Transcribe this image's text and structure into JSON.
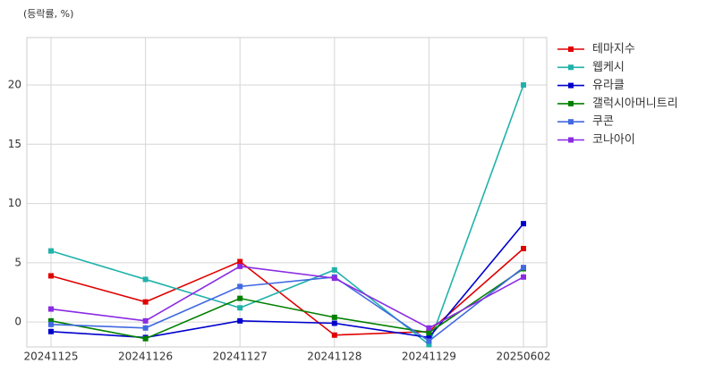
{
  "chart_data": {
    "type": "line",
    "title": "(등락률, %)",
    "categories": [
      "20241125",
      "20241126",
      "20241127",
      "20241128",
      "20241129",
      "20250602"
    ],
    "series": [
      {
        "name": "테마지수",
        "color": "#e00000",
        "values": [
          3.9,
          1.7,
          5.1,
          -1.1,
          -0.8,
          6.2
        ]
      },
      {
        "name": "웹케시",
        "color": "#20b2aa",
        "values": [
          6.0,
          3.6,
          1.2,
          4.4,
          -1.9,
          20.0
        ]
      },
      {
        "name": "유라클",
        "color": "#0000cd",
        "values": [
          -0.8,
          -1.3,
          0.1,
          -0.1,
          -1.3,
          8.3
        ]
      },
      {
        "name": "갤럭시아머니트리",
        "color": "#008000",
        "values": [
          0.1,
          -1.4,
          2.0,
          0.4,
          -0.9,
          4.5
        ]
      },
      {
        "name": "쿠콘",
        "color": "#4169e1",
        "values": [
          -0.2,
          -0.5,
          3.0,
          3.8,
          -1.6,
          4.6
        ]
      },
      {
        "name": "코나아이",
        "color": "#8a2be2",
        "values": [
          1.1,
          0.1,
          4.7,
          3.7,
          -0.5,
          3.8
        ]
      }
    ],
    "ylim": [
      -2.1,
      24
    ],
    "yticks": [
      0,
      5,
      10,
      15,
      20
    ],
    "grid": true,
    "legend": "outside-right"
  }
}
